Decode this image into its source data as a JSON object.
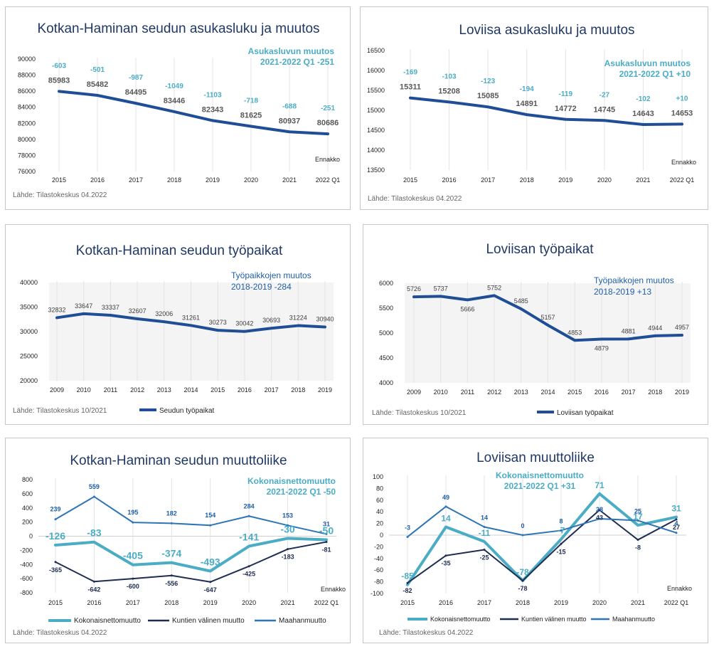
{
  "colors": {
    "dark_blue": "#1f4e96",
    "navy": "#1f2d50",
    "teal": "#4bacc6",
    "mid_blue": "#2e75b6",
    "grid": "#d9d9d9",
    "title": "#1f3864"
  },
  "chart_data": [
    {
      "type": "line",
      "title": "Kotkan-Haminan seudun asukasluku ja muutos",
      "categories": [
        "2015",
        "2016",
        "2017",
        "2018",
        "2019",
        "2020",
        "2021",
        "2022 Q1"
      ],
      "series": [
        {
          "name": "",
          "values": [
            85983,
            85482,
            84495,
            83446,
            82343,
            81625,
            80937,
            80686
          ]
        }
      ],
      "changes": [
        "-603",
        "-501",
        "-987",
        "-1049",
        "-1103",
        "-718",
        "-688",
        "-251"
      ],
      "ylim": [
        76000,
        90000
      ],
      "yticks": [
        "76000",
        "78000",
        "80000",
        "82000",
        "84000",
        "86000",
        "88000",
        "90000"
      ],
      "annotation": [
        "Asukasluvun muutos",
        "2021-2022 Q1    -251"
      ],
      "note": "Ennakko",
      "source": "Lähde: Tilastokeskus 04.2022"
    },
    {
      "type": "line",
      "title": "Loviisa asukasluku ja muutos",
      "categories": [
        "2015",
        "2016",
        "2017",
        "2018",
        "2019",
        "2020",
        "2021",
        "2022 Q1"
      ],
      "series": [
        {
          "name": "",
          "values": [
            15311,
            15208,
            15085,
            14891,
            14772,
            14745,
            14643,
            14653
          ]
        }
      ],
      "changes": [
        "-169",
        "-103",
        "-123",
        "-194",
        "-119",
        "-27",
        "-102",
        "+10"
      ],
      "ylim": [
        13500,
        16500
      ],
      "yticks": [
        "13500",
        "14000",
        "14500",
        "15000",
        "15500",
        "16000",
        "16500"
      ],
      "annotation": [
        "Asukasluvun muutos",
        "2021-2022 Q1    +10"
      ],
      "note": "Ennakko",
      "source": "Lähde: Tilastokeskus 04.2022"
    },
    {
      "type": "line",
      "title": "Kotkan-Haminan seudun työpaikat",
      "categories": [
        "2009",
        "2010",
        "2011",
        "2012",
        "2013",
        "2014",
        "2015",
        "2016",
        "2017",
        "2018",
        "2019"
      ],
      "series": [
        {
          "name": "Seudun työpaikat",
          "values": [
            32832,
            33647,
            33337,
            32607,
            32006,
            31261,
            30273,
            30042,
            30693,
            31224,
            30940
          ]
        }
      ],
      "ylim": [
        20000,
        40000
      ],
      "yticks": [
        "20000",
        "25000",
        "30000",
        "35000",
        "40000"
      ],
      "annotation": [
        "Työpaikkojen muutos",
        "2018-2019   -284"
      ],
      "source": "Lähde: Tilastokeskus 10/2021"
    },
    {
      "type": "line",
      "title": "Loviisan työpaikat",
      "categories": [
        "2009",
        "2010",
        "2011",
        "2012",
        "2013",
        "2014",
        "2015",
        "2016",
        "2017",
        "2018",
        "2019"
      ],
      "series": [
        {
          "name": "Loviisan työpaikat",
          "values": [
            5726,
            5737,
            5666,
            5752,
            5485,
            5157,
            4853,
            4879,
            4881,
            4944,
            4957
          ]
        }
      ],
      "ylim": [
        4000,
        6000
      ],
      "yticks": [
        "4000",
        "4500",
        "5000",
        "5500",
        "6000"
      ],
      "annotation": [
        "Työpaikkojen muutos",
        "2018-2019   +13"
      ],
      "source": "Lähde: Tilastokeskus 10/2021"
    },
    {
      "type": "line",
      "title": "Kotkan-Haminan seudun muuttoliike",
      "categories": [
        "2015",
        "2016",
        "2017",
        "2018",
        "2019",
        "2020",
        "2021",
        "2022 Q1"
      ],
      "series": [
        {
          "name": "Kokonaisnettomuutto",
          "values": [
            -126,
            -83,
            -405,
            -374,
            -493,
            -141,
            -30,
            -50
          ]
        },
        {
          "name": "Kuntien välinen muutto",
          "values": [
            -365,
            -642,
            -600,
            -556,
            -647,
            -425,
            -183,
            -81
          ]
        },
        {
          "name": "Maahanmuutto",
          "values": [
            239,
            559,
            195,
            182,
            154,
            284,
            153,
            31
          ]
        }
      ],
      "ylim": [
        -800,
        800
      ],
      "yticks": [
        "-800",
        "-600",
        "-400",
        "-200",
        "0",
        "200",
        "400",
        "600",
        "800"
      ],
      "annotation": [
        "Kokonaisnettomuutto",
        "2021-2022 Q1    -50"
      ],
      "note": "Ennakko",
      "source": "Lähde: Tilastokeskus 04.2022"
    },
    {
      "type": "line",
      "title": "Loviisan muuttoliike",
      "categories": [
        "2015",
        "2016",
        "2017",
        "2018",
        "2019",
        "2020",
        "2021",
        "2022 Q1"
      ],
      "series": [
        {
          "name": "Kokonaisnettomuutto",
          "values": [
            -85,
            14,
            -11,
            -78,
            -7,
            71,
            17,
            31
          ]
        },
        {
          "name": "Kuntien välinen muutto",
          "values": [
            -82,
            -35,
            -25,
            -78,
            -15,
            43,
            -8,
            27
          ]
        },
        {
          "name": "Maahanmuutto",
          "values": [
            -3,
            49,
            14,
            0,
            8,
            28,
            25,
            4
          ]
        }
      ],
      "ylim": [
        -100,
        100
      ],
      "yticks": [
        "-100",
        "-80",
        "-60",
        "-40",
        "-20",
        "0",
        "20",
        "40",
        "60",
        "80",
        "100"
      ],
      "annotation": [
        "Kokonaisnettomuutto",
        "2021-2022 Q1    +31"
      ],
      "note": "Ennakko",
      "source": "Lähde: Tilastokeskus 04.2022"
    }
  ]
}
